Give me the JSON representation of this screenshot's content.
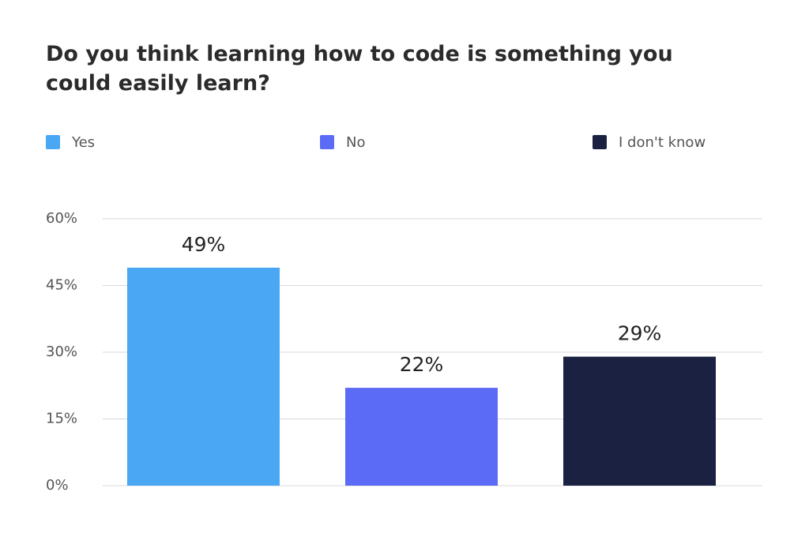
{
  "chart_data": {
    "type": "bar",
    "title": "Do you think learning how to code is something you could easily learn?",
    "categories": [
      "Yes",
      "No",
      "I don't know"
    ],
    "values": [
      49,
      22,
      29
    ],
    "value_labels": [
      "49%",
      "22%",
      "29%"
    ],
    "colors": [
      "#4aa7f3",
      "#5b6bf5",
      "#1b2140"
    ],
    "ylim": [
      0,
      60
    ],
    "yticks": [
      {
        "value": 0,
        "label": "0%"
      },
      {
        "value": 15,
        "label": "15%"
      },
      {
        "value": 30,
        "label": "30%"
      },
      {
        "value": 45,
        "label": "45%"
      },
      {
        "value": 60,
        "label": "60%"
      }
    ],
    "grid": true
  }
}
